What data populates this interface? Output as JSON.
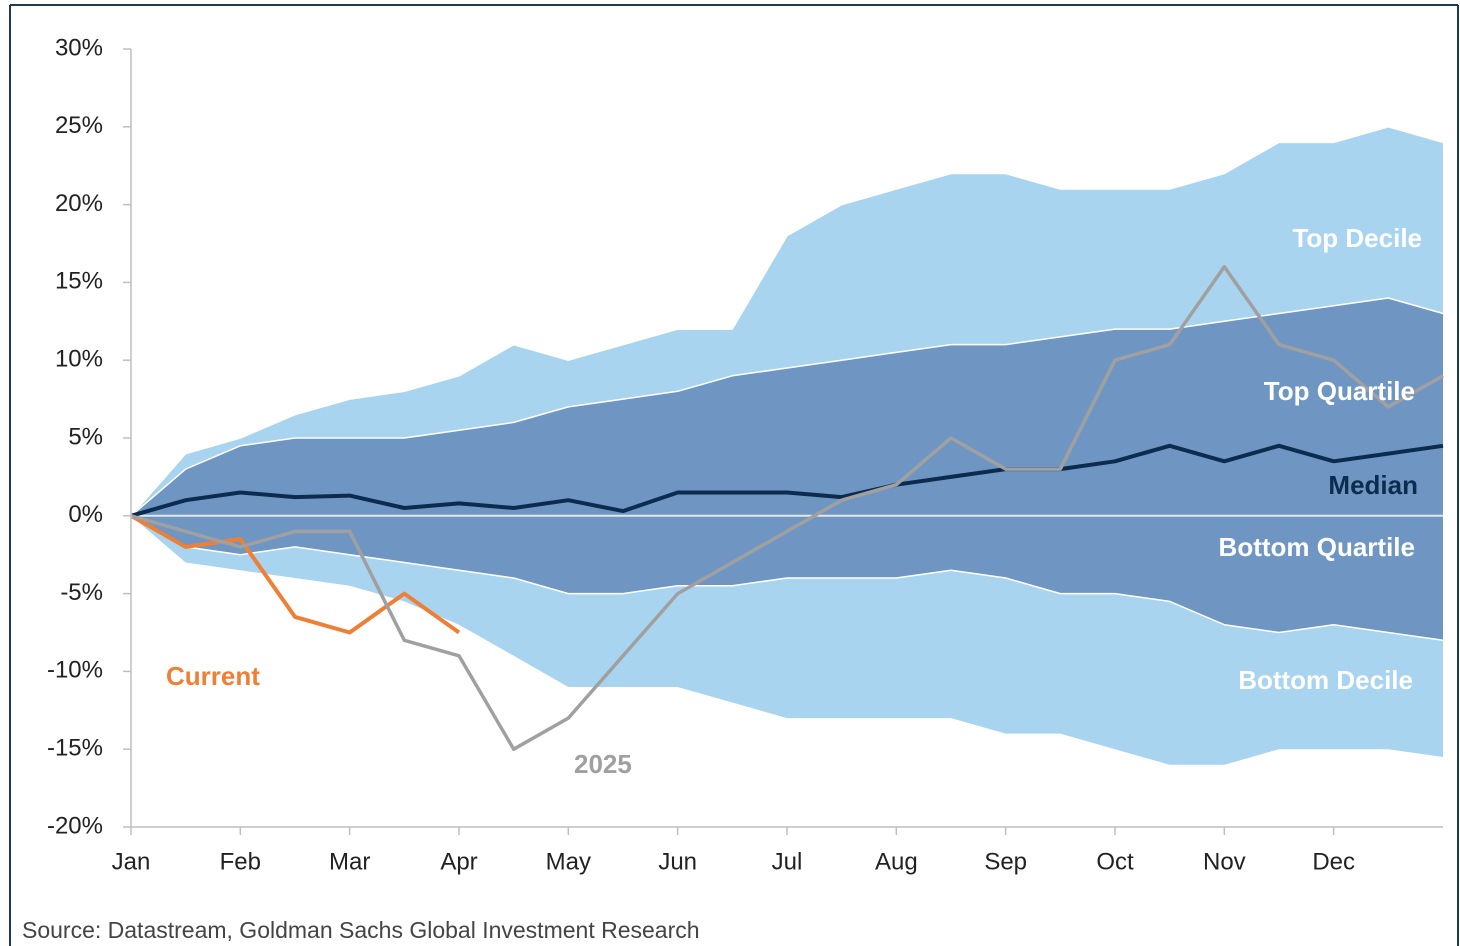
{
  "chart_data": {
    "type": "band",
    "source": "Source: Datastream, Goldman Sachs Global Investment Research",
    "x": [
      0,
      0.5,
      1,
      1.5,
      2,
      2.5,
      3,
      3.5,
      4,
      4.5,
      5,
      5.5,
      6,
      6.5,
      7,
      7.5,
      8,
      8.5,
      9,
      9.5,
      10,
      10.5,
      11,
      11.5,
      12
    ],
    "xlim": [
      0,
      12
    ],
    "xticks": [
      {
        "value": 0,
        "label": "Jan"
      },
      {
        "value": 1,
        "label": "Feb"
      },
      {
        "value": 2,
        "label": "Mar"
      },
      {
        "value": 3,
        "label": "Apr"
      },
      {
        "value": 4,
        "label": "May"
      },
      {
        "value": 5,
        "label": "Jun"
      },
      {
        "value": 6,
        "label": "Jul"
      },
      {
        "value": 7,
        "label": "Aug"
      },
      {
        "value": 8,
        "label": "Sep"
      },
      {
        "value": 9,
        "label": "Oct"
      },
      {
        "value": 10,
        "label": "Nov"
      },
      {
        "value": 11,
        "label": "Dec"
      }
    ],
    "ylim": [
      -20,
      30
    ],
    "yticks": [
      {
        "value": 30,
        "label": "30%"
      },
      {
        "value": 25,
        "label": "25%"
      },
      {
        "value": 20,
        "label": "20%"
      },
      {
        "value": 15,
        "label": "15%"
      },
      {
        "value": 10,
        "label": "10%"
      },
      {
        "value": 5,
        "label": "5%"
      },
      {
        "value": 0,
        "label": "0%"
      },
      {
        "value": -5,
        "label": "-5%"
      },
      {
        "value": -10,
        "label": "-10%"
      },
      {
        "value": -15,
        "label": "-15%"
      },
      {
        "value": -20,
        "label": "-20%"
      }
    ],
    "band_colors": [
      "#a9d4ef",
      "#6f96c2",
      "#a9d4ef"
    ],
    "series": [
      {
        "name": "Top Decile",
        "color": "#ffffff",
        "values": [
          0,
          4,
          5,
          6.5,
          7.5,
          8,
          9,
          11,
          10,
          11,
          12,
          12,
          18,
          20,
          21,
          22,
          22,
          21,
          21,
          21,
          22,
          24,
          24,
          25,
          24
        ]
      },
      {
        "name": "Top Quartile",
        "color": "#ffffff",
        "values": [
          0,
          3,
          4.5,
          5,
          5,
          5,
          5.5,
          6,
          7,
          7.5,
          8,
          9,
          9.5,
          10,
          10.5,
          11,
          11,
          11.5,
          12,
          12,
          12.5,
          13,
          13.5,
          14,
          13
        ]
      },
      {
        "name": "Median",
        "color": "#0b2c4e",
        "values": [
          0,
          1,
          1.5,
          1.2,
          1.3,
          0.5,
          0.8,
          0.5,
          1,
          0.3,
          1.5,
          1.5,
          1.5,
          1.2,
          2,
          2.5,
          3,
          3,
          3.5,
          4.5,
          3.5,
          4.5,
          3.5,
          4,
          4.5
        ]
      },
      {
        "name": "Bottom Quartile",
        "color": "#ffffff",
        "values": [
          0,
          -2,
          -2.5,
          -2,
          -2.5,
          -3,
          -3.5,
          -4,
          -5,
          -5,
          -4.5,
          -4.5,
          -4,
          -4,
          -4,
          -3.5,
          -4,
          -5,
          -5,
          -5.5,
          -7,
          -7.5,
          -7,
          -7.5,
          -8
        ]
      },
      {
        "name": "Bottom Decile",
        "color": "#ffffff",
        "values": [
          0,
          -3,
          -3.5,
          -4,
          -4.5,
          -5.5,
          -7,
          -9,
          -11,
          -11,
          -11,
          -12,
          -13,
          -13,
          -13,
          -13,
          -14,
          -14,
          -15,
          -16,
          -16,
          -15,
          -15,
          -15,
          -15.5
        ]
      },
      {
        "name": "Current",
        "color": "#f07f36",
        "values": [
          0,
          -2,
          -1.5,
          -6.5,
          -7.5,
          -5,
          -7.5,
          null,
          null,
          null,
          null,
          null,
          null,
          null,
          null,
          null,
          null,
          null,
          null,
          null,
          null,
          null,
          null,
          null,
          null
        ]
      },
      {
        "name": "2025",
        "color": "#a0a0a0",
        "values": [
          0,
          -1,
          -2,
          -1,
          -1,
          -8,
          -9,
          -15,
          -13,
          -9,
          -5,
          -3,
          -1,
          1,
          2,
          5,
          3,
          3,
          10,
          11,
          16,
          11,
          10,
          7,
          9
        ]
      }
    ]
  }
}
